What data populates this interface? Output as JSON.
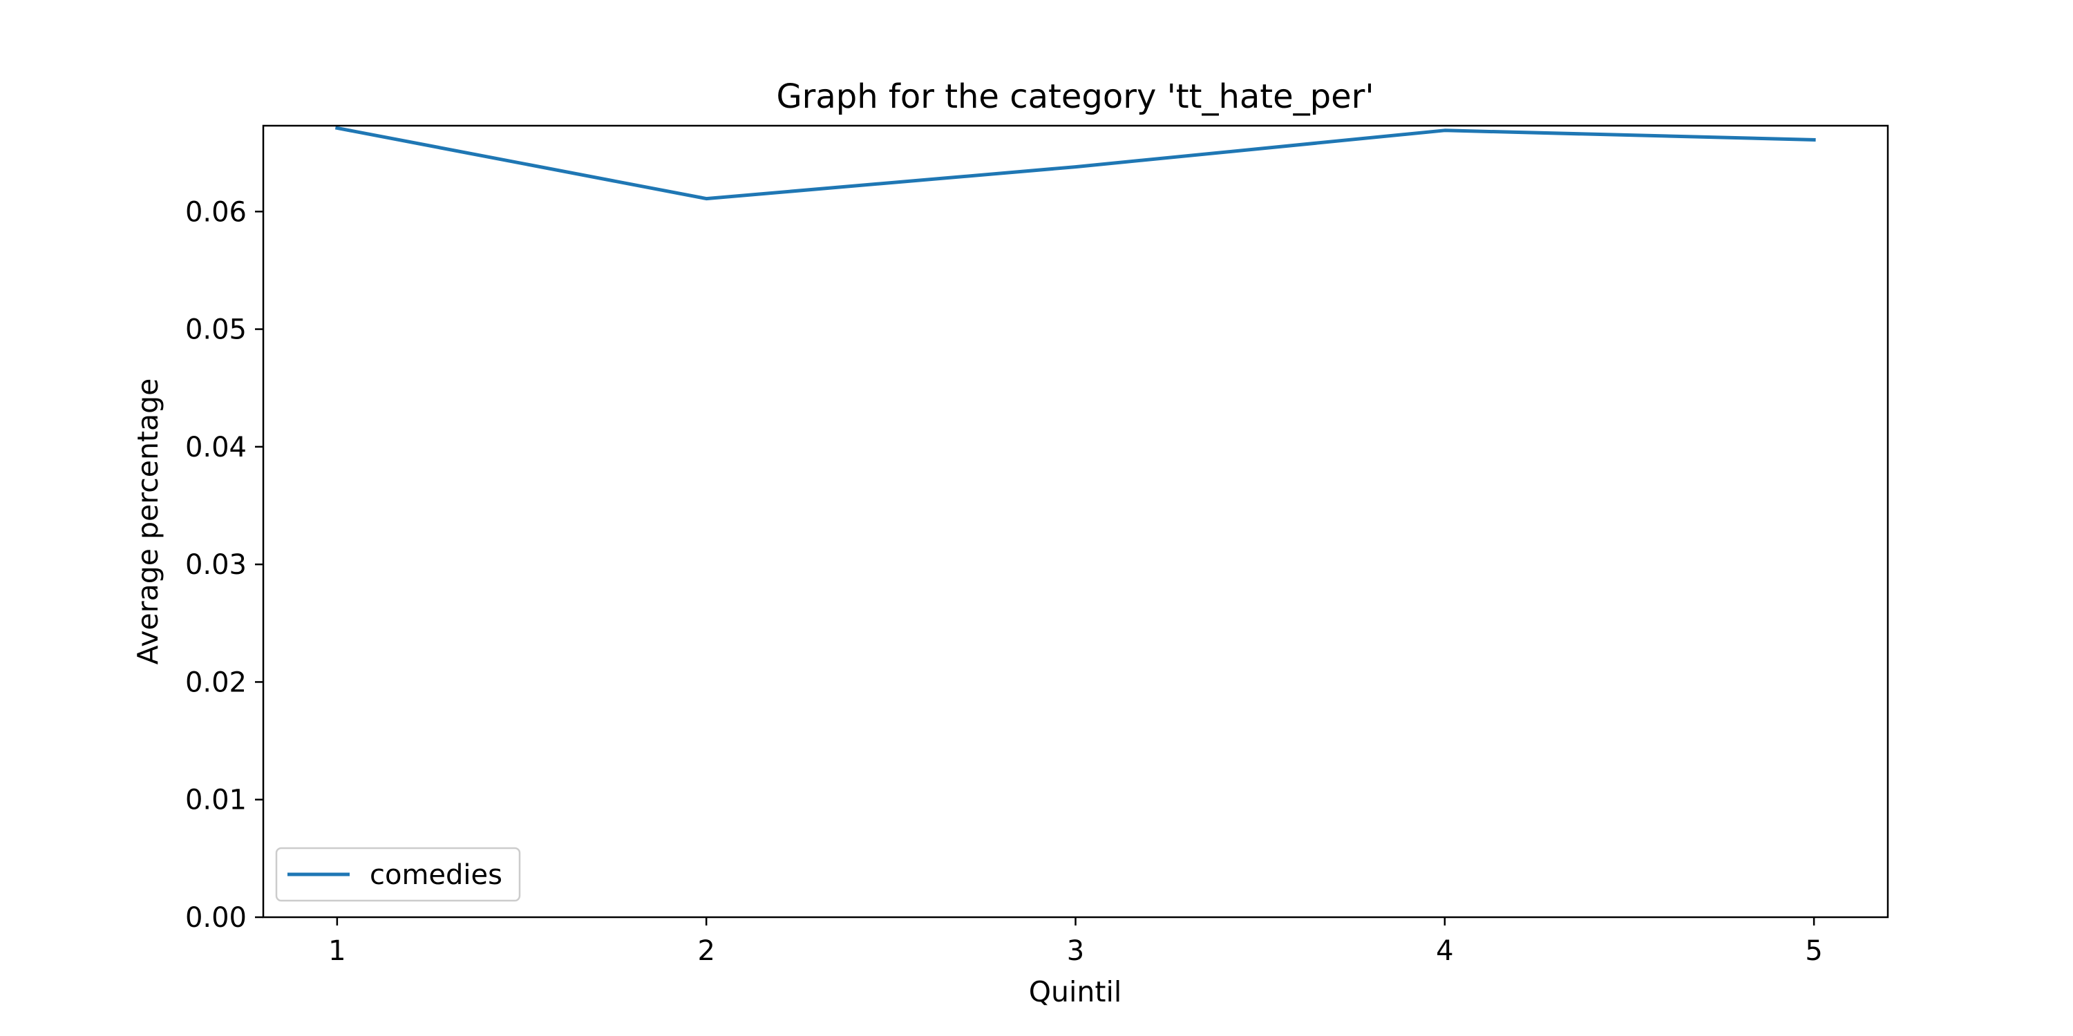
{
  "chart_data": {
    "type": "line",
    "title": "Graph for the category 'tt_hate_per'",
    "xlabel": "Quintil",
    "ylabel": "Average percentage",
    "x": [
      1,
      2,
      3,
      4,
      5
    ],
    "xticks": [
      "1",
      "2",
      "3",
      "4",
      "5"
    ],
    "yticks": [
      "0.00",
      "0.01",
      "0.02",
      "0.03",
      "0.04",
      "0.05",
      "0.06"
    ],
    "xlim": [
      0.8,
      5.2
    ],
    "ylim": [
      0,
      0.0673
    ],
    "series": [
      {
        "name": "comedies",
        "color": "#1f77b4",
        "values": [
          0.0671,
          0.0611,
          0.0638,
          0.0669,
          0.0661
        ]
      }
    ],
    "legend": {
      "placement": "lower-left"
    },
    "grid": false
  }
}
